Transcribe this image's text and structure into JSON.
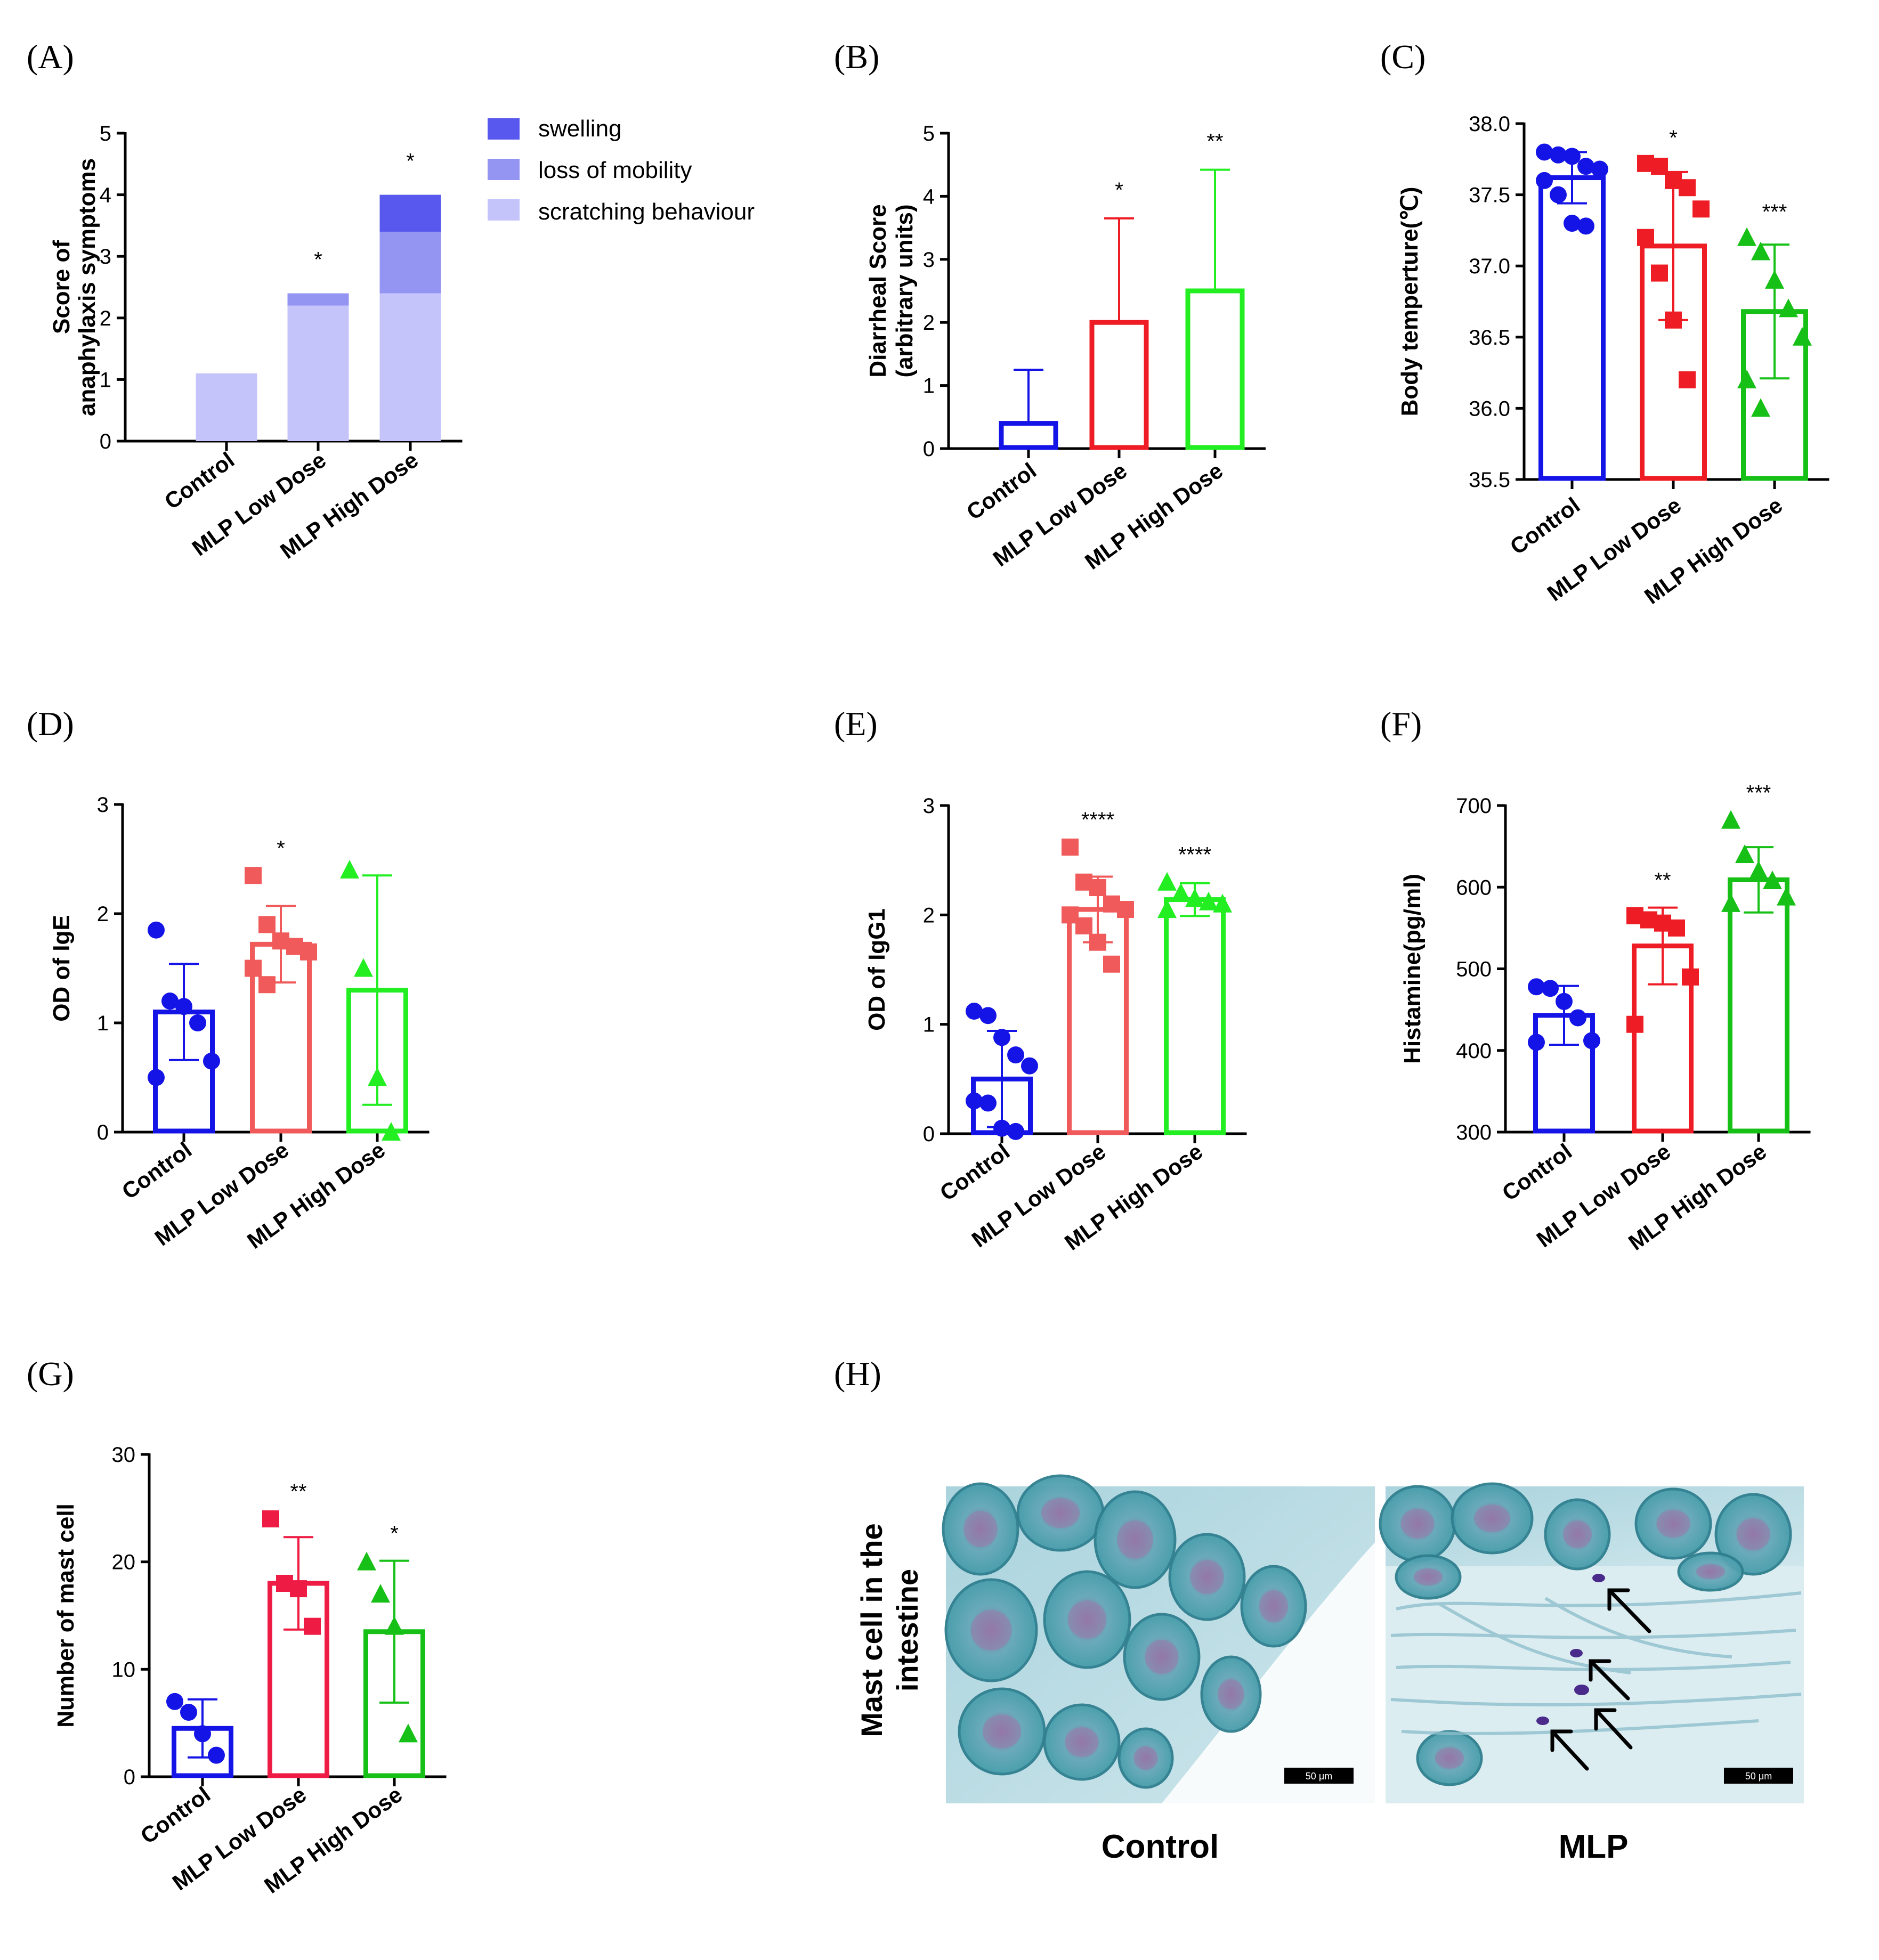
{
  "chart_data": [
    {
      "panel": "(A)",
      "type": "bar",
      "stacked": true,
      "ylabel": [
        "Score of",
        "anaphylaxis symptoms"
      ],
      "ylim": [
        0,
        5
      ],
      "yticks": [
        "0",
        "1",
        "2",
        "3",
        "4",
        "5"
      ],
      "categories": [
        "Control",
        "MLP Low Dose",
        "MLP High Dose"
      ],
      "series": [
        {
          "name": "scratching behaviour",
          "color": "#c4c4fa",
          "values": [
            1.1,
            2.2,
            2.4
          ]
        },
        {
          "name": "loss of mobility",
          "color": "#9494f2",
          "values": [
            0,
            0.2,
            1.0
          ]
        },
        {
          "name": "swelling",
          "color": "#5858ee",
          "values": [
            0,
            0,
            0.6
          ]
        }
      ],
      "significance": [
        "",
        "*",
        "*"
      ]
    },
    {
      "panel": "(B)",
      "type": "bar",
      "ylabel": [
        "Diarrheal Score",
        "(arbitrary units)"
      ],
      "ylim": [
        0,
        5
      ],
      "yticks": [
        "0",
        "1",
        "2",
        "3",
        "4",
        "5"
      ],
      "categories": [
        "Control",
        "MLP Low Dose",
        "MLP High Dose"
      ],
      "colors": [
        "#1414e6",
        "#ee1c24",
        "#22ee22"
      ],
      "values": [
        0.4,
        2.0,
        2.5
      ],
      "sd": [
        0.85,
        1.65,
        1.92
      ],
      "significance": [
        "",
        "*",
        "**"
      ]
    },
    {
      "panel": "(C)",
      "type": "bar",
      "ylabel": [
        "Body temperture(℃)"
      ],
      "ylim": [
        35.5,
        38.0
      ],
      "yticks": [
        "35.5",
        "36.0",
        "36.5",
        "37.0",
        "37.5",
        "38.0"
      ],
      "categories": [
        "Control",
        "MLP Low Dose",
        "MLP High Dose"
      ],
      "colors": [
        "#1414e6",
        "#ee1c24",
        "#16c016"
      ],
      "values": [
        37.62,
        37.14,
        36.68
      ],
      "sd": [
        0.18,
        0.52,
        0.47
      ],
      "points": [
        [
          37.8,
          37.78,
          37.77,
          37.7,
          37.68,
          37.6,
          37.5,
          37.3,
          37.28
        ],
        [
          37.72,
          37.7,
          37.6,
          37.55,
          37.4,
          37.2,
          36.95,
          36.62,
          36.2
        ],
        [
          37.2,
          37.1,
          36.9,
          36.7,
          36.5,
          36.2,
          36.0
        ]
      ],
      "significance": [
        "",
        "*",
        "***"
      ]
    },
    {
      "panel": "(D)",
      "type": "bar",
      "ylabel": [
        "OD of IgE"
      ],
      "ylim": [
        0,
        3
      ],
      "yticks": [
        "0",
        "1",
        "2",
        "3"
      ],
      "categories": [
        "Control",
        "MLP Low Dose",
        "MLP High Dose"
      ],
      "colors": [
        "#1414e6",
        "#f05a5a",
        "#22ee22"
      ],
      "values": [
        1.1,
        1.72,
        1.3
      ],
      "sd": [
        0.44,
        0.35,
        1.05
      ],
      "points": [
        [
          1.85,
          1.2,
          1.15,
          1.0,
          0.65,
          0.5
        ],
        [
          2.35,
          1.9,
          1.75,
          1.7,
          1.65,
          1.5,
          1.35
        ],
        [
          2.4,
          1.5,
          0.5,
          0.0
        ]
      ],
      "significance": [
        "",
        "*",
        ""
      ]
    },
    {
      "panel": "(E)",
      "type": "bar",
      "ylabel": [
        "OD of IgG1"
      ],
      "ylim": [
        0,
        3
      ],
      "yticks": [
        "0",
        "1",
        "2",
        "3"
      ],
      "categories": [
        "Control",
        "MLP Low Dose",
        "MLP High Dose"
      ],
      "colors": [
        "#1414e6",
        "#f05a5a",
        "#22ee22"
      ],
      "values": [
        0.5,
        2.05,
        2.14
      ],
      "sd": [
        0.44,
        0.3,
        0.15
      ],
      "points": [
        [
          1.12,
          1.08,
          0.88,
          0.72,
          0.62,
          0.3,
          0.28,
          0.05,
          0.02
        ],
        [
          2.62,
          2.3,
          2.25,
          2.1,
          2.05,
          2.0,
          1.9,
          1.75,
          1.55
        ],
        [
          2.3,
          2.2,
          2.15,
          2.12,
          2.1,
          2.05
        ]
      ],
      "significance": [
        "",
        "****",
        "****"
      ]
    },
    {
      "panel": "(F)",
      "type": "bar",
      "ylabel": [
        "Histamine(pg/ml)"
      ],
      "ylim": [
        300,
        700
      ],
      "yticks": [
        "300",
        "400",
        "500",
        "600",
        "700"
      ],
      "categories": [
        "Control",
        "MLP Low Dose",
        "MLP High Dose"
      ],
      "colors": [
        "#1414e6",
        "#ee1c24",
        "#16c016"
      ],
      "values": [
        443,
        528,
        609
      ],
      "sd": [
        36,
        47,
        40
      ],
      "points": [
        [
          478,
          476,
          460,
          440,
          412,
          410
        ],
        [
          565,
          560,
          556,
          550,
          490,
          432
        ],
        [
          682,
          640,
          620,
          608,
          588,
          580
        ]
      ],
      "significance": [
        "",
        "**",
        "***"
      ]
    },
    {
      "panel": "(G)",
      "type": "bar",
      "ylabel": [
        "Number of mast cell"
      ],
      "ylim": [
        0,
        30
      ],
      "yticks": [
        "0",
        "10",
        "20",
        "30"
      ],
      "categories": [
        "Control",
        "MLP Low Dose",
        "MLP High Dose"
      ],
      "colors": [
        "#1414e6",
        "#ee1c44",
        "#16c016"
      ],
      "values": [
        4.5,
        18.0,
        13.5
      ],
      "sd": [
        2.7,
        4.3,
        6.6
      ],
      "points": [
        [
          7,
          6,
          4,
          2
        ],
        [
          24,
          18,
          17.5,
          14
        ],
        [
          20,
          17,
          14,
          4
        ]
      ],
      "significance": [
        "",
        "**",
        "*"
      ]
    }
  ],
  "legend_A": [
    "swelling",
    "loss of mobility",
    "scratching behaviour"
  ],
  "panel_H": {
    "label": "(H)",
    "ylabel": [
      "Mast cell in the",
      "intestine"
    ],
    "images": [
      "Control",
      "MLP"
    ],
    "scalebar": "50 μm"
  }
}
